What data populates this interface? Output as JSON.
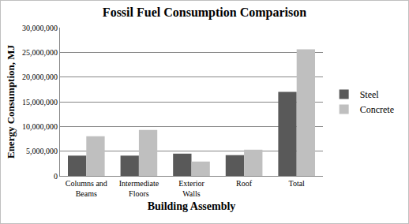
{
  "chart_data": {
    "type": "bar",
    "title": "Fossil Fuel Consumption Comparison",
    "x_label": "Building Assembly",
    "y_label": "Energy Consumption, MJ",
    "categories": [
      "Columns and Beams",
      "Intermediate Floors",
      "Exterior Walls",
      "Roof",
      "Total"
    ],
    "series": [
      {
        "name": "Steel",
        "color": "#595959",
        "values": [
          4100000,
          4100000,
          4500000,
          4200000,
          17000000
        ]
      },
      {
        "name": "Concrete",
        "color": "#bfbfbf",
        "values": [
          8000000,
          9300000,
          2900000,
          5300000,
          25600000
        ]
      }
    ],
    "ylim": [
      0,
      30000000
    ],
    "yticks": [
      0,
      {
        "value": 5000000,
        "label": "5,000,000"
      },
      {
        "value": 10000000,
        "label": "10,000,000"
      },
      {
        "value": 15000000,
        "label": "15,000,000"
      },
      {
        "value": 20000000,
        "label": "20,000,000"
      },
      {
        "value": 25000000,
        "label": "25,000,000"
      },
      {
        "value": 30000000,
        "label": "30,000,000"
      }
    ],
    "grid": true,
    "legend": "right"
  }
}
